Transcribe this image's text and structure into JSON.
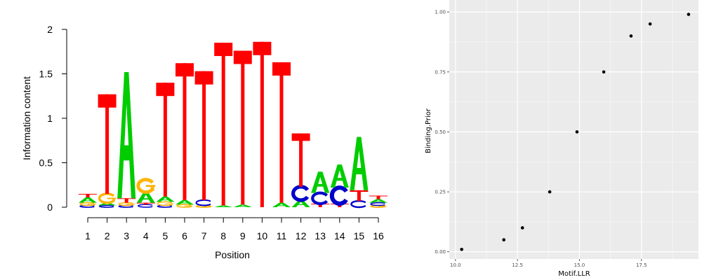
{
  "logo_chart": {
    "chart_data": {
      "type": "bar",
      "subtype": "sequence-logo",
      "title": "",
      "xlabel": "Position",
      "ylabel": "Information content",
      "ylim": [
        0,
        2
      ],
      "yticks": [
        "0",
        "0.5",
        "1",
        "1.5",
        "2"
      ],
      "categories": [
        "1",
        "2",
        "3",
        "4",
        "5",
        "6",
        "7",
        "8",
        "9",
        "10",
        "11",
        "12",
        "13",
        "14",
        "15",
        "16"
      ],
      "letter_colors": {
        "A": "#00cc00",
        "C": "#0000cc",
        "G": "#ffb300",
        "T": "#ff0000"
      },
      "stacks": [
        [
          {
            "letter": "C",
            "bits": 0.02
          },
          {
            "letter": "G",
            "bits": 0.03
          },
          {
            "letter": "A",
            "bits": 0.06
          },
          {
            "letter": "T",
            "bits": 0.04
          }
        ],
        [
          {
            "letter": "C",
            "bits": 0.02
          },
          {
            "letter": "A",
            "bits": 0.03
          },
          {
            "letter": "G",
            "bits": 0.1
          },
          {
            "letter": "T",
            "bits": 1.12
          }
        ],
        [
          {
            "letter": "C",
            "bits": 0.02
          },
          {
            "letter": "G",
            "bits": 0.03
          },
          {
            "letter": "T",
            "bits": 0.05
          },
          {
            "letter": "A",
            "bits": 1.42
          }
        ],
        [
          {
            "letter": "C",
            "bits": 0.03
          },
          {
            "letter": "T",
            "bits": 0.02
          },
          {
            "letter": "A",
            "bits": 0.12
          },
          {
            "letter": "G",
            "bits": 0.14
          }
        ],
        [
          {
            "letter": "C",
            "bits": 0.02
          },
          {
            "letter": "G",
            "bits": 0.04
          },
          {
            "letter": "A",
            "bits": 0.06
          },
          {
            "letter": "T",
            "bits": 1.28
          }
        ],
        [
          {
            "letter": "G",
            "bits": 0.03
          },
          {
            "letter": "A",
            "bits": 0.05
          },
          {
            "letter": "T",
            "bits": 1.54
          }
        ],
        [
          {
            "letter": "G",
            "bits": 0.02
          },
          {
            "letter": "C",
            "bits": 0.06
          },
          {
            "letter": "T",
            "bits": 1.45
          }
        ],
        [
          {
            "letter": "A",
            "bits": 0.02
          },
          {
            "letter": "T",
            "bits": 1.83
          }
        ],
        [
          {
            "letter": "A",
            "bits": 0.03
          },
          {
            "letter": "T",
            "bits": 1.73
          }
        ],
        [
          {
            "letter": "T",
            "bits": 1.86
          }
        ],
        [
          {
            "letter": "A",
            "bits": 0.05
          },
          {
            "letter": "T",
            "bits": 1.58
          }
        ],
        [
          {
            "letter": "A",
            "bits": 0.08
          },
          {
            "letter": "C",
            "bits": 0.15
          },
          {
            "letter": "T",
            "bits": 0.6
          }
        ],
        [
          {
            "letter": "T",
            "bits": 0.04
          },
          {
            "letter": "C",
            "bits": 0.12
          },
          {
            "letter": "A",
            "bits": 0.24
          }
        ],
        [
          {
            "letter": "T",
            "bits": 0.04
          },
          {
            "letter": "C",
            "bits": 0.18
          },
          {
            "letter": "A",
            "bits": 0.26
          }
        ],
        [
          {
            "letter": "C",
            "bits": 0.07
          },
          {
            "letter": "T",
            "bits": 0.12
          },
          {
            "letter": "A",
            "bits": 0.6
          }
        ],
        [
          {
            "letter": "G",
            "bits": 0.02
          },
          {
            "letter": "C",
            "bits": 0.03
          },
          {
            "letter": "A",
            "bits": 0.04
          },
          {
            "letter": "T",
            "bits": 0.04
          }
        ]
      ]
    }
  },
  "scatter_chart": {
    "chart_data": {
      "type": "scatter",
      "title": "",
      "xlabel": "Motif.LLR",
      "ylabel": "Binding.Prior",
      "xlim": [
        9.75,
        19.8
      ],
      "ylim": [
        -0.03,
        1.05
      ],
      "xticks": [
        10.0,
        12.5,
        15.0,
        17.5
      ],
      "xtick_labels": [
        "10.0",
        "12.5",
        "15.0",
        "17.5"
      ],
      "yticks": [
        0.0,
        0.25,
        0.5,
        0.75,
        1.0
      ],
      "ytick_labels": [
        "0.00",
        "0.25",
        "0.50",
        "0.75",
        "1.00"
      ],
      "grid": true,
      "x": [
        10.25,
        11.95,
        12.7,
        13.8,
        14.9,
        15.98,
        17.08,
        17.85,
        19.4
      ],
      "y": [
        0.01,
        0.05,
        0.1,
        0.25,
        0.5,
        0.75,
        0.9,
        0.95,
        0.99
      ]
    }
  }
}
